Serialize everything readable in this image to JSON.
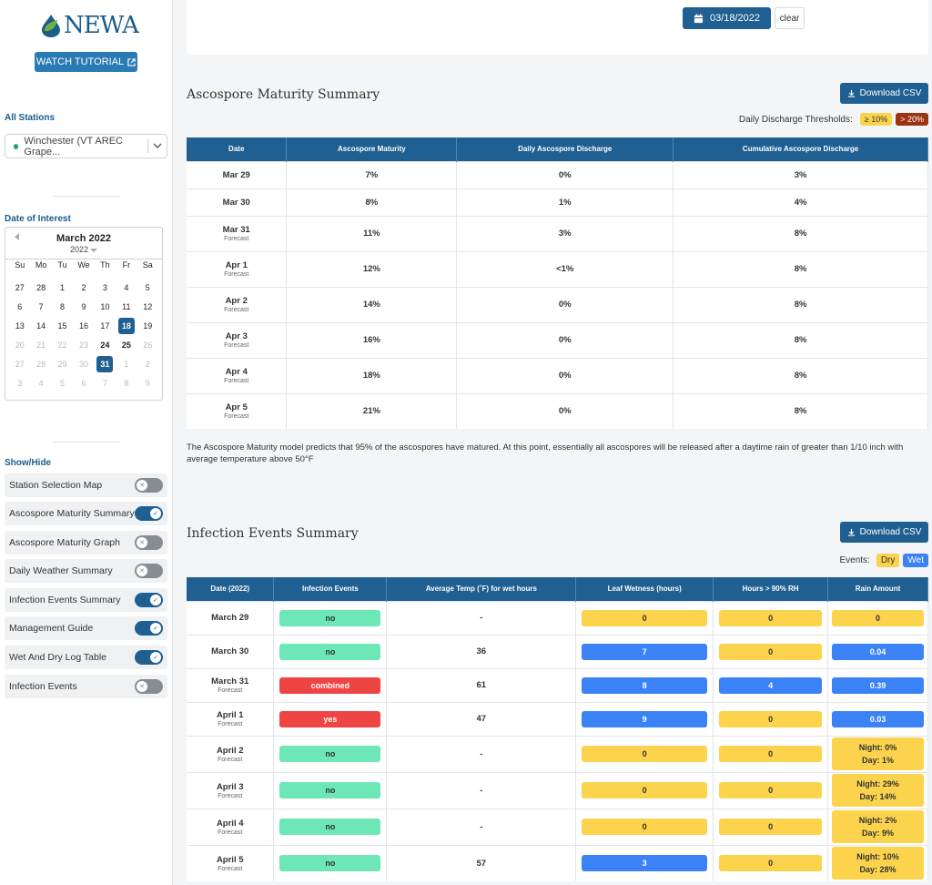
{
  "sidebar": {
    "logo_text": "NEWA",
    "tutorial_label": "WATCH TUTORIAL",
    "stations_label": "All Stations",
    "station_value": "Winchester (VT AREC Grape...",
    "date_label": "Date of Interest",
    "calendar": {
      "month": "March 2022",
      "year": "2022",
      "dows": [
        "Su",
        "Mo",
        "Tu",
        "We",
        "Th",
        "Fr",
        "Sa"
      ],
      "days": [
        {
          "d": "27",
          "s": ""
        },
        {
          "d": "28",
          "s": ""
        },
        {
          "d": "1",
          "s": ""
        },
        {
          "d": "2",
          "s": ""
        },
        {
          "d": "3",
          "s": ""
        },
        {
          "d": "4",
          "s": ""
        },
        {
          "d": "5",
          "s": ""
        },
        {
          "d": "6",
          "s": ""
        },
        {
          "d": "7",
          "s": ""
        },
        {
          "d": "8",
          "s": ""
        },
        {
          "d": "9",
          "s": ""
        },
        {
          "d": "10",
          "s": ""
        },
        {
          "d": "11",
          "s": ""
        },
        {
          "d": "12",
          "s": ""
        },
        {
          "d": "13",
          "s": ""
        },
        {
          "d": "14",
          "s": ""
        },
        {
          "d": "15",
          "s": ""
        },
        {
          "d": "16",
          "s": ""
        },
        {
          "d": "17",
          "s": ""
        },
        {
          "d": "18",
          "s": "sel"
        },
        {
          "d": "19",
          "s": ""
        },
        {
          "d": "20",
          "s": "dim"
        },
        {
          "d": "21",
          "s": "dim"
        },
        {
          "d": "22",
          "s": "dim"
        },
        {
          "d": "23",
          "s": "dim"
        },
        {
          "d": "24",
          "s": "bold"
        },
        {
          "d": "25",
          "s": "bold"
        },
        {
          "d": "26",
          "s": "dim"
        },
        {
          "d": "27",
          "s": "dim"
        },
        {
          "d": "28",
          "s": "dim"
        },
        {
          "d": "29",
          "s": "dim"
        },
        {
          "d": "30",
          "s": "dim"
        },
        {
          "d": "31",
          "s": "sel"
        },
        {
          "d": "1",
          "s": "dim"
        },
        {
          "d": "2",
          "s": "dim"
        },
        {
          "d": "3",
          "s": "dim"
        },
        {
          "d": "4",
          "s": "dim"
        },
        {
          "d": "5",
          "s": "dim"
        },
        {
          "d": "6",
          "s": "dim"
        },
        {
          "d": "7",
          "s": "dim"
        },
        {
          "d": "8",
          "s": "dim"
        },
        {
          "d": "9",
          "s": "dim"
        }
      ]
    },
    "showhide_label": "Show/Hide",
    "toggles": [
      {
        "label": "Station Selection Map",
        "on": false
      },
      {
        "label": "Ascospore Maturity Summary",
        "on": true
      },
      {
        "label": "Ascospore Maturity Graph",
        "on": false
      },
      {
        "label": "Daily Weather Summary",
        "on": false
      },
      {
        "label": "Infection Events Summary",
        "on": true
      },
      {
        "label": "Management Guide",
        "on": true
      },
      {
        "label": "Wet And Dry Log Table",
        "on": true
      },
      {
        "label": "Infection Events",
        "on": false
      }
    ]
  },
  "date_picker": {
    "value": "03/18/2022",
    "clear_label": "clear"
  },
  "ascospore": {
    "title": "Ascospore Maturity Summary",
    "csv_label": "Download CSV",
    "thresholds_label": "Daily Discharge Thresholds:",
    "threshold_low": "≥ 10%",
    "threshold_high": "> 20%",
    "headers": [
      "Date",
      "Ascospore Maturity",
      "Daily Ascospore Discharge",
      "Cumulative Ascospore Discharge"
    ],
    "rows": [
      {
        "date": "Mar 29",
        "sub": "",
        "mat": "7%",
        "daily": "0%",
        "cum": "3%"
      },
      {
        "date": "Mar 30",
        "sub": "",
        "mat": "8%",
        "daily": "1%",
        "cum": "4%"
      },
      {
        "date": "Mar 31",
        "sub": "Forecast",
        "mat": "11%",
        "daily": "3%",
        "cum": "8%"
      },
      {
        "date": "Apr 1",
        "sub": "Forecast",
        "mat": "12%",
        "daily": "<1%",
        "cum": "8%"
      },
      {
        "date": "Apr 2",
        "sub": "Forecast",
        "mat": "14%",
        "daily": "0%",
        "cum": "8%"
      },
      {
        "date": "Apr 3",
        "sub": "Forecast",
        "mat": "16%",
        "daily": "0%",
        "cum": "8%"
      },
      {
        "date": "Apr 4",
        "sub": "Forecast",
        "mat": "18%",
        "daily": "0%",
        "cum": "8%"
      },
      {
        "date": "Apr 5",
        "sub": "Forecast",
        "mat": "21%",
        "daily": "0%",
        "cum": "8%"
      }
    ],
    "note": "The Ascospore Maturity model predicts that 95% of the ascospores have matured. At this point, essentially all ascospores will be released after a daytime rain of greater than 1/10 inch with average temperature above 50°F"
  },
  "infection": {
    "title": "Infection Events Summary",
    "csv_label": "Download CSV",
    "events_label": "Events:",
    "dry_label": "Dry",
    "wet_label": "Wet",
    "headers": [
      "Date (2022)",
      "Infection Events",
      "Average Temp (˚F) for wet hours",
      "Leaf Wetness (hours)",
      "Hours > 90% RH",
      "Rain Amount"
    ],
    "rows": [
      {
        "date": "March 29",
        "sub": "",
        "event": "no",
        "ev_c": "green",
        "temp": "-",
        "lw": "0",
        "lw_c": "yellow",
        "rh": "0",
        "rh_c": "yellow",
        "rain": [
          "0"
        ],
        "rain_c": "yellow"
      },
      {
        "date": "March 30",
        "sub": "",
        "event": "no",
        "ev_c": "green",
        "temp": "36",
        "lw": "7",
        "lw_c": "blue",
        "rh": "0",
        "rh_c": "yellow",
        "rain": [
          "0.04"
        ],
        "rain_c": "blue"
      },
      {
        "date": "March 31",
        "sub": "Forecast",
        "event": "combined",
        "ev_c": "red",
        "temp": "61",
        "lw": "8",
        "lw_c": "blue",
        "rh": "4",
        "rh_c": "blue",
        "rain": [
          "0.39"
        ],
        "rain_c": "blue"
      },
      {
        "date": "April 1",
        "sub": "Forecast",
        "event": "yes",
        "ev_c": "red",
        "temp": "47",
        "lw": "9",
        "lw_c": "blue",
        "rh": "0",
        "rh_c": "yellow",
        "rain": [
          "0.03"
        ],
        "rain_c": "blue"
      },
      {
        "date": "April 2",
        "sub": "Forecast",
        "event": "no",
        "ev_c": "green",
        "temp": "-",
        "lw": "0",
        "lw_c": "yellow",
        "rh": "0",
        "rh_c": "yellow",
        "rain": [
          "Night: 0%",
          "Day: 1%"
        ],
        "rain_c": "yellow"
      },
      {
        "date": "April 3",
        "sub": "Forecast",
        "event": "no",
        "ev_c": "green",
        "temp": "-",
        "lw": "0",
        "lw_c": "yellow",
        "rh": "0",
        "rh_c": "yellow",
        "rain": [
          "Night: 29%",
          "Day: 14%"
        ],
        "rain_c": "yellow"
      },
      {
        "date": "April 4",
        "sub": "Forecast",
        "event": "no",
        "ev_c": "green",
        "temp": "-",
        "lw": "0",
        "lw_c": "yellow",
        "rh": "0",
        "rh_c": "yellow",
        "rain": [
          "Night: 2%",
          "Day: 9%"
        ],
        "rain_c": "yellow"
      },
      {
        "date": "April 5",
        "sub": "Forecast",
        "event": "no",
        "ev_c": "green",
        "temp": "57",
        "lw": "3",
        "lw_c": "blue",
        "rh": "0",
        "rh_c": "yellow",
        "rain": [
          "Night: 10%",
          "Day: 28%"
        ],
        "rain_c": "yellow"
      }
    ]
  },
  "colors": {
    "yellow": "#fcd34d",
    "blue": "#3b82f6",
    "green": "#6ee7b7",
    "red": "#ef4444",
    "primary": "#1f5f91",
    "threshold_high": "#9a3412"
  }
}
